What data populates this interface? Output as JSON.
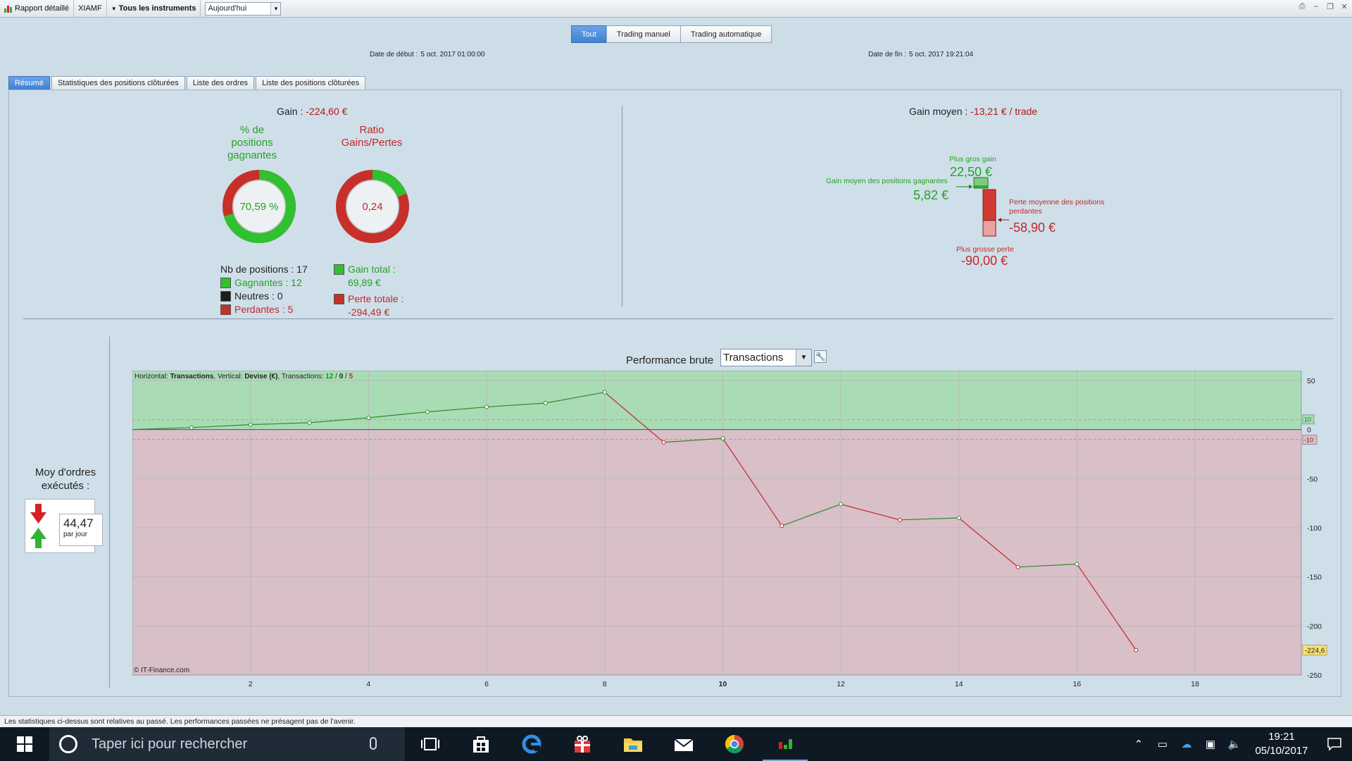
{
  "toolbar": {
    "report_label": "Rapport détaillé",
    "account_label": "XIAMF",
    "instruments_label": "Tous les instruments",
    "period_value": "Aujourd'hui"
  },
  "mode_tabs": [
    "Tout",
    "Trading manuel",
    "Trading automatique"
  ],
  "dates": {
    "start_label": "Date de début :",
    "start_value": "5 oct. 2017 01:00:00",
    "end_label": "Date de fin :",
    "end_value": "5 oct. 2017 19:21:04"
  },
  "sub_tabs": [
    "Résumé",
    "Statistiques des positions clôturées",
    "Liste des ordres",
    "Liste des positions clôturées"
  ],
  "summary": {
    "gain_label": "Gain :",
    "gain_value": "-224,60 €",
    "pct_title": "% de positions gagnantes",
    "pct_value": "70,59 %",
    "pct_fraction": 0.7059,
    "ratio_title": "Ratio Gains/Pertes",
    "ratio_value": "0,24",
    "ratio_fraction": 0.1918,
    "nb_positions": "Nb de positions : 17",
    "gagnantes": "Gagnantes : 12",
    "neutres": "Neutres : 0",
    "perdantes": "Perdantes : 5",
    "gain_total": "Gain total :",
    "gain_total_value": "69,89 €",
    "perte_totale": "Perte totale :",
    "perte_totale_value": "-294,49 €"
  },
  "gain_moyen": {
    "label": "Gain moyen :",
    "value": "-13,21 € / trade",
    "plus_gros_gain_label": "Plus gros gain",
    "plus_gros_gain_value": "22,50 €",
    "gain_moyen_gagnantes_label": "Gain moyen des positions gagnantes",
    "gain_moyen_gagnantes_value": "5,82 €",
    "perte_moyenne_label": "Perte moyenne des positions perdantes",
    "perte_moyenne_value": "-58,90 €",
    "plus_grosse_perte_label": "Plus grosse perte",
    "plus_grosse_perte_value": "-90,00 €"
  },
  "orders": {
    "title": "Moy d'ordres exécutés :",
    "value": "44,47",
    "unit": "par jour"
  },
  "performance": {
    "label": "Performance brute",
    "select_value": "Transactions"
  },
  "chart_data": {
    "type": "line",
    "info_prefix_h": "Horizontal:",
    "info_h_value": "Transactions",
    "info_prefix_v": "Vertical:",
    "info_v_value": "Devise (€)",
    "info_prefix_t": "Transactions:",
    "info_win": "12",
    "info_neutral": "0",
    "info_lose": "5",
    "copyright": "© IT-Finance.com",
    "x": [
      0,
      1,
      2,
      3,
      4,
      5,
      6,
      7,
      8,
      9,
      10,
      11,
      12,
      13,
      14,
      15,
      16,
      17
    ],
    "y": [
      0,
      2,
      5,
      7,
      12,
      18,
      23,
      27,
      38,
      -13,
      -9,
      -98,
      -76,
      -92,
      -90,
      -140,
      -137,
      -224.6
    ],
    "xlim": [
      0,
      19.8
    ],
    "ylim": [
      -250,
      60
    ],
    "x_ticks": [
      2,
      4,
      6,
      8,
      10,
      12,
      14,
      16,
      18
    ],
    "y_ticks": [
      50,
      0,
      -50,
      -100,
      -150,
      -200,
      -250
    ],
    "avg_gain_line": 10,
    "avg_loss_line": -10,
    "last_value_label": "-224,6",
    "marker_10": "10",
    "marker_m10": "-10",
    "colors": {
      "up": "#2e8b2e",
      "down": "#c0282a",
      "positive_zone": "#a9dcb5",
      "negative_zone": "#d9bfc8",
      "zero_line": "#3a4fb0"
    }
  },
  "status_text": "Les statistiques ci-dessus sont relatives au passé. Les performances passées ne présagent pas de l'avenir.",
  "taskbar": {
    "search_placeholder": "Taper ici pour rechercher",
    "time": "19:21",
    "date": "05/10/2017"
  }
}
